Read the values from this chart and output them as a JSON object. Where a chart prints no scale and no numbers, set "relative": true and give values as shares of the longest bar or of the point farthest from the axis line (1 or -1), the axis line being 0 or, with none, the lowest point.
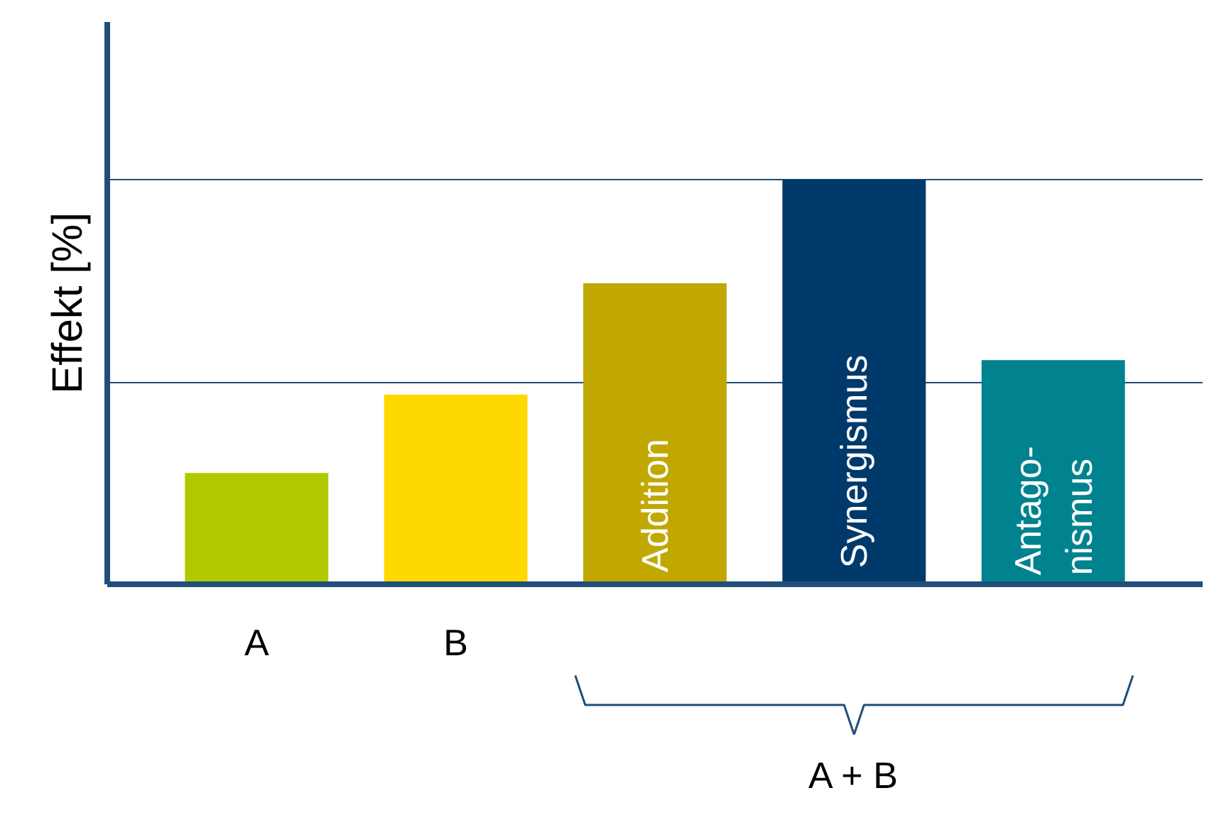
{
  "chart_data": {
    "type": "bar",
    "relative": true,
    "ylabel": "Effekt [%]",
    "categories": [
      "A",
      "B",
      "Addition",
      "Synergismus",
      "Antago-\nnismus"
    ],
    "values": [
      0.275,
      0.469,
      0.744,
      1,
      0.554
    ],
    "colors": [
      "#b0c800",
      "#ffd800",
      "#c0a800",
      "#003a6a",
      "#00828f"
    ],
    "annotations": [
      "A + B"
    ],
    "grid": "y"
  }
}
